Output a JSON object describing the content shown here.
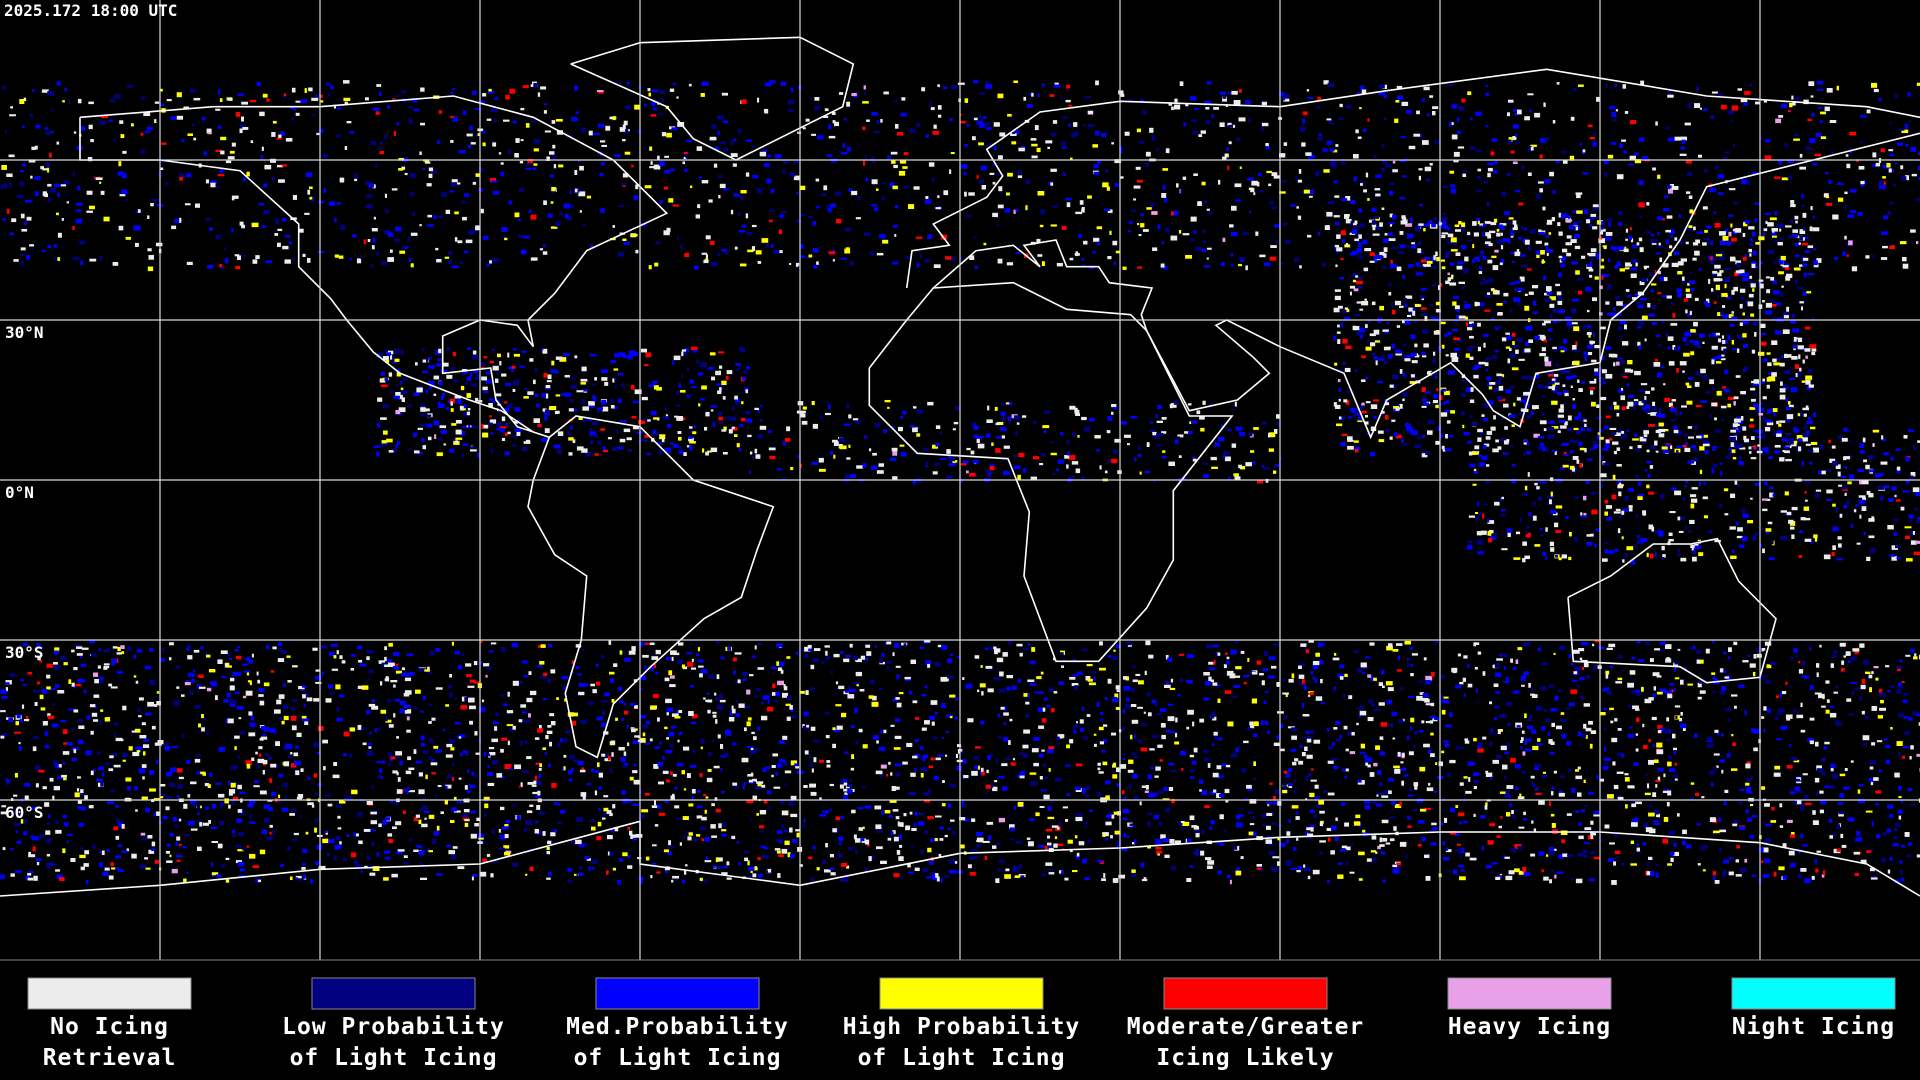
{
  "header": {
    "timestamp": "2025.172 18:00 UTC"
  },
  "map": {
    "latitude_labels": [
      "30°N",
      "0°N",
      "30°S",
      "60°S"
    ]
  },
  "legend": {
    "items": [
      {
        "label_lines": [
          "No Icing",
          "Retrieval"
        ],
        "color": "#ececec"
      },
      {
        "label_lines": [
          "Low Probability",
          "of Light Icing"
        ],
        "color": "#000080"
      },
      {
        "label_lines": [
          "Med.Probability",
          "of Light Icing"
        ],
        "color": "#0000ff"
      },
      {
        "label_lines": [
          "High Probability",
          "of Light Icing"
        ],
        "color": "#ffff00"
      },
      {
        "label_lines": [
          "Moderate/Greater",
          "Icing Likely"
        ],
        "color": "#ff0000"
      },
      {
        "label_lines": [
          "Heavy Icing"
        ],
        "color": "#e8a0e8"
      },
      {
        "label_lines": [
          "Night Icing"
        ],
        "color": "#00ffff"
      }
    ]
  }
}
